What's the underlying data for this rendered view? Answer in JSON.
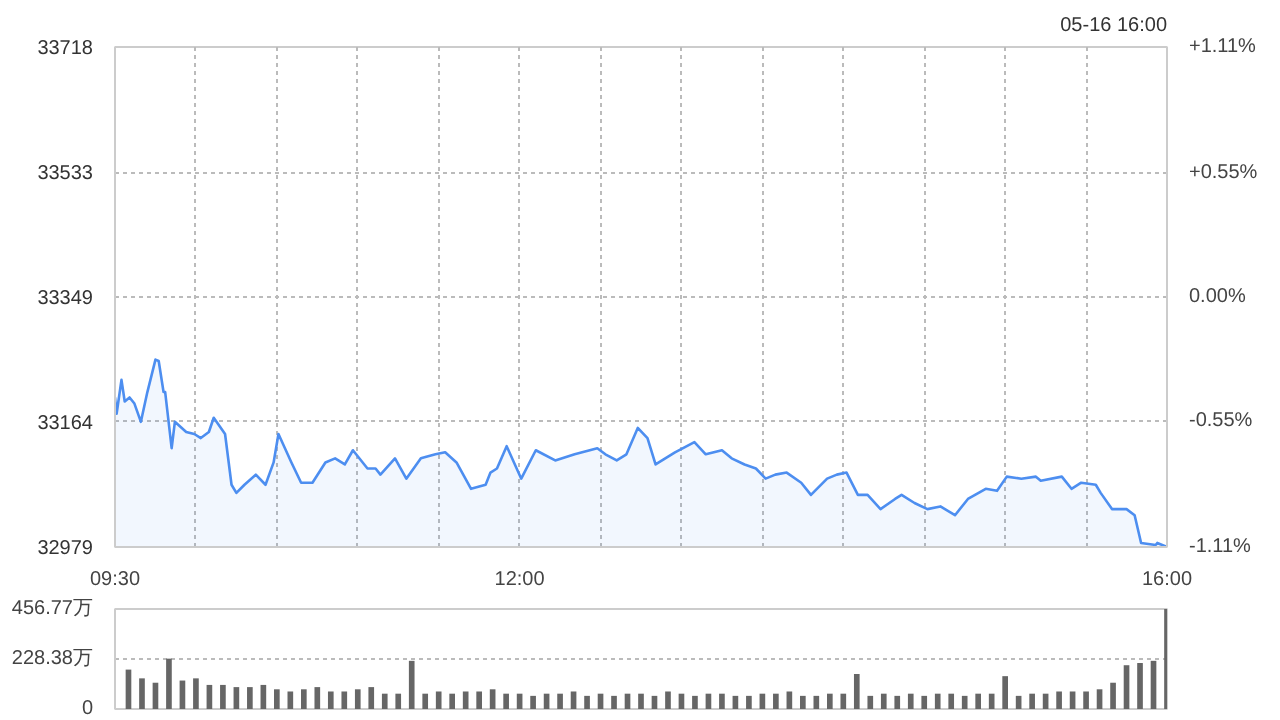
{
  "chart_data": [
    {
      "type": "area",
      "annotations": [
        "05-16 16:00"
      ],
      "x": [
        9.5,
        9.51,
        9.54,
        9.56,
        9.59,
        9.62,
        9.66,
        9.7,
        9.75,
        9.77,
        9.8,
        9.81,
        9.85,
        9.87,
        9.94,
        9.99,
        10.03,
        10.08,
        10.11,
        10.18,
        10.22,
        10.25,
        10.3,
        10.37,
        10.43,
        10.48,
        10.51,
        10.59,
        10.65,
        10.72,
        10.8,
        10.86,
        10.92,
        10.97,
        11.06,
        11.11,
        11.14,
        11.23,
        11.3,
        11.39,
        11.48,
        11.54,
        11.61,
        11.7,
        11.79,
        11.82,
        11.86,
        11.92,
        12.01,
        12.1,
        12.22,
        12.34,
        12.48,
        12.53,
        12.6,
        12.66,
        12.73,
        12.79,
        12.84,
        12.96,
        13.08,
        13.15,
        13.25,
        13.31,
        13.39,
        13.46,
        13.52,
        13.58,
        13.65,
        13.74,
        13.8,
        13.9,
        13.96,
        14.02,
        14.09,
        14.15,
        14.23,
        14.32,
        14.36,
        14.44,
        14.52,
        14.6,
        14.69,
        14.77,
        14.88,
        14.95,
        15.01,
        15.1,
        15.19,
        15.22,
        15.35,
        15.41,
        15.47,
        15.56,
        15.59,
        15.66,
        15.75,
        15.8,
        15.84,
        15.93,
        15.94,
        16.0
      ],
      "series": [
        {
          "color": "#4d8ef0",
          "values": [
            33200,
            33176,
            33226,
            33194,
            33200,
            33191,
            33164,
            33208,
            33256,
            33254,
            33208,
            33208,
            33125,
            33164,
            33149,
            33146,
            33140,
            33149,
            33170,
            33146,
            33071,
            33059,
            33071,
            33086,
            33071,
            33104,
            33146,
            33104,
            33074,
            33074,
            33104,
            33110,
            33101,
            33122,
            33095,
            33095,
            33086,
            33110,
            33080,
            33110,
            33116,
            33119,
            33104,
            33065,
            33071,
            33089,
            33095,
            33128,
            33080,
            33122,
            33107,
            33116,
            33125,
            33116,
            33107,
            33116,
            33155,
            33140,
            33101,
            33119,
            33134,
            33116,
            33122,
            33110,
            33101,
            33095,
            33080,
            33086,
            33089,
            33074,
            33056,
            33080,
            33086,
            33089,
            33056,
            33056,
            33035,
            33050,
            33056,
            33044,
            33035,
            33039,
            33026,
            33050,
            33065,
            33062,
            33083,
            33080,
            33083,
            33077,
            33083,
            33065,
            33074,
            33071,
            33059,
            33035,
            33035,
            33026,
            32985,
            32982,
            32985,
            32979
          ]
        }
      ],
      "xlim": [
        9.5,
        16
      ],
      "xticks": [
        {
          "value": 9.5,
          "label": "09:30"
        },
        {
          "value": 10,
          "label": null
        },
        {
          "value": 10.5,
          "label": null
        },
        {
          "value": 11,
          "label": null
        },
        {
          "value": 11.5,
          "label": null
        },
        {
          "value": 12,
          "label": "12:00"
        },
        {
          "value": 12.5,
          "label": null
        },
        {
          "value": 13,
          "label": null
        },
        {
          "value": 13.5,
          "label": null
        },
        {
          "value": 14,
          "label": null
        },
        {
          "value": 14.5,
          "label": null
        },
        {
          "value": 15,
          "label": null
        },
        {
          "value": 15.5,
          "label": null
        },
        {
          "value": 16,
          "label": "16:00"
        }
      ],
      "ylim": [
        32979,
        33718
      ],
      "yticks": [
        32979,
        33164,
        33349,
        33533,
        33718
      ],
      "y2lim": [
        -1.11,
        1.11
      ],
      "y2ticks": [
        {
          "value": -1.11,
          "label": "-1.11%"
        },
        {
          "value": -0.55,
          "label": "-0.55%"
        },
        {
          "value": 0,
          "label": "0.00%"
        },
        {
          "value": 0.55,
          "label": "+0.55%"
        },
        {
          "value": 1.11,
          "label": "+1.11%"
        }
      ],
      "grid": true
    },
    {
      "type": "bar",
      "x": [
        9.5833,
        9.6667,
        9.75,
        9.8333,
        9.9167,
        10.0,
        10.0833,
        10.1667,
        10.25,
        10.3333,
        10.4167,
        10.5,
        10.5833,
        10.6667,
        10.75,
        10.8333,
        10.9167,
        11.0,
        11.0833,
        11.1667,
        11.25,
        11.3333,
        11.4167,
        11.5,
        11.5833,
        11.6667,
        11.75,
        11.8333,
        11.9167,
        12.0,
        12.0833,
        12.1667,
        12.25,
        12.3333,
        12.4167,
        12.5,
        12.5833,
        12.6667,
        12.75,
        12.8333,
        12.9167,
        13.0,
        13.0833,
        13.1667,
        13.25,
        13.3333,
        13.4167,
        13.5,
        13.5833,
        13.6667,
        13.75,
        13.8333,
        13.9167,
        14.0,
        14.0833,
        14.1667,
        14.25,
        14.3333,
        14.4167,
        14.5,
        14.5833,
        14.6667,
        14.75,
        14.8333,
        14.9167,
        15.0,
        15.0833,
        15.1667,
        15.25,
        15.3333,
        15.4167,
        15.5,
        15.5833,
        15.6667,
        15.75,
        15.8333,
        15.9167,
        16.0
      ],
      "series": [
        {
          "color": "#666666",
          "values": [
            180,
            140,
            120,
            230,
            130,
            140,
            110,
            110,
            100,
            100,
            110,
            90,
            80,
            90,
            100,
            80,
            80,
            90,
            100,
            70,
            70,
            220,
            70,
            80,
            70,
            80,
            80,
            90,
            70,
            70,
            60,
            70,
            70,
            80,
            60,
            70,
            60,
            70,
            70,
            60,
            80,
            70,
            60,
            70,
            70,
            60,
            60,
            70,
            70,
            80,
            60,
            60,
            70,
            70,
            160,
            60,
            70,
            60,
            70,
            60,
            70,
            70,
            60,
            70,
            70,
            150,
            60,
            70,
            70,
            80,
            80,
            80,
            90,
            120,
            200,
            210,
            220,
            456.77
          ]
        }
      ],
      "xlim": [
        9.5,
        16
      ],
      "ylim": [
        0,
        456.77
      ],
      "yticks": [
        0,
        {
          "value": 228.38,
          "label": "228.38万"
        },
        {
          "value": 456.77,
          "label": "456.77万"
        }
      ],
      "tick_labels": "y",
      "grid": "y"
    }
  ]
}
